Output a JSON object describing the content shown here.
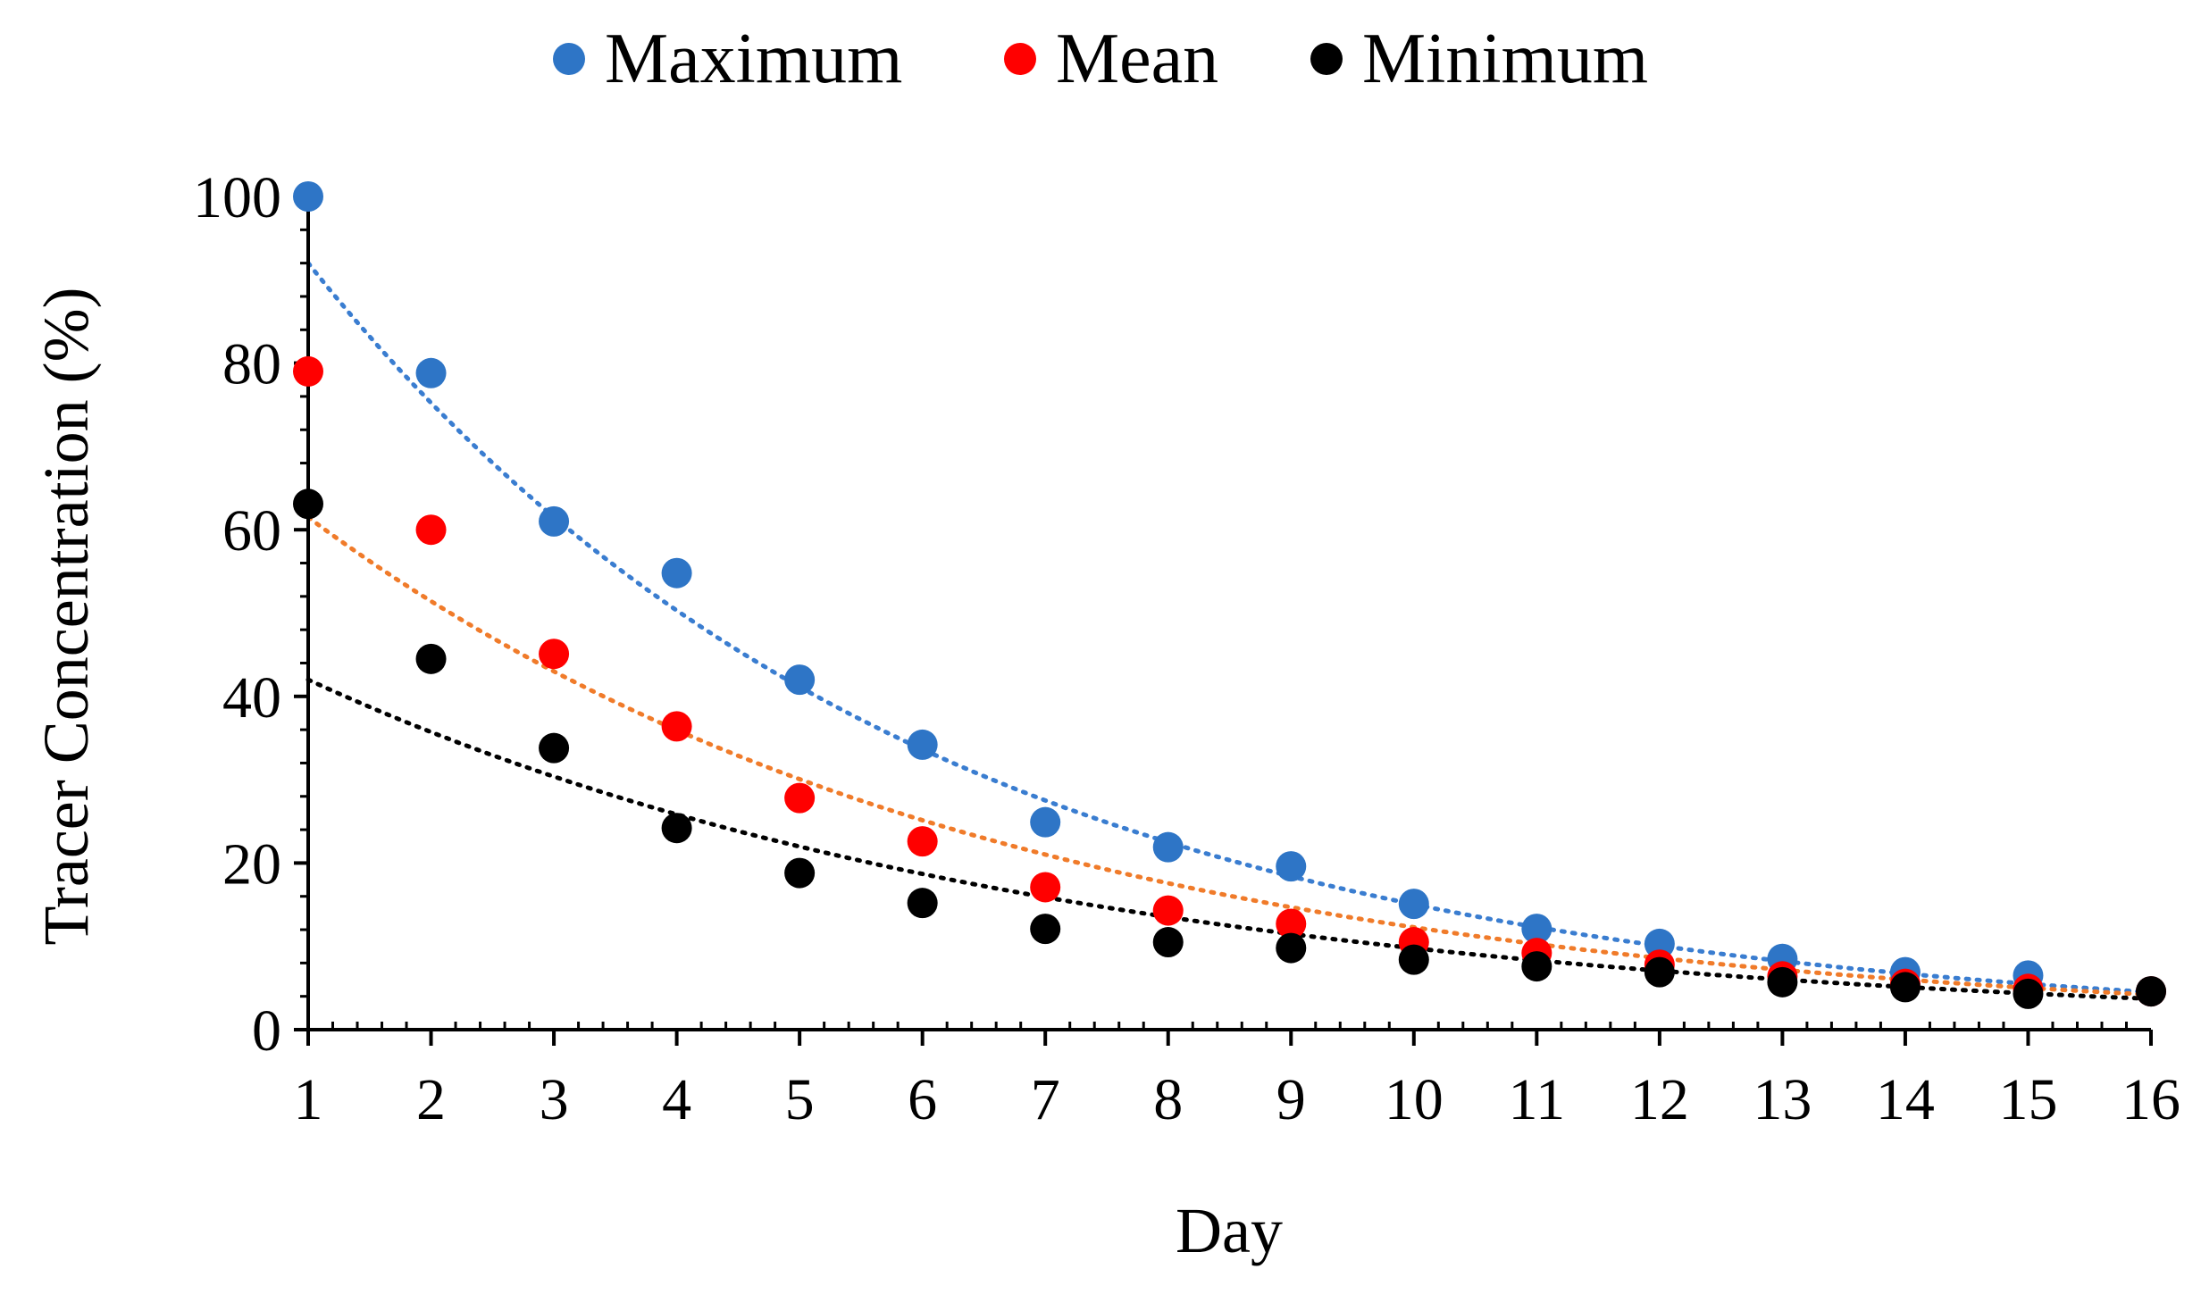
{
  "chart_data": {
    "type": "scatter",
    "title": "",
    "xlabel": "Day",
    "ylabel": "Tracer Concentration (%)",
    "xlim": [
      1,
      16
    ],
    "ylim": [
      0,
      100
    ],
    "x_ticks": [
      1,
      2,
      3,
      4,
      5,
      6,
      7,
      8,
      9,
      10,
      11,
      12,
      13,
      14,
      15,
      16
    ],
    "y_ticks": [
      0,
      20,
      40,
      60,
      80,
      100
    ],
    "legend_position": "top",
    "grid": false,
    "x": [
      1,
      2,
      3,
      4,
      5,
      6,
      7,
      8,
      9,
      10,
      11,
      12,
      13,
      14,
      15,
      16
    ],
    "series": [
      {
        "name": "Maximum",
        "color": "#2e75c6",
        "trend_color": "#3a7dd0",
        "trendline": "exponential",
        "trend_start": 92,
        "trend_end": 4.5,
        "values": [
          100,
          78.8,
          61,
          54.8,
          42,
          34.2,
          24.9,
          21.9,
          19.6,
          15.1,
          12.1,
          10.3,
          8.5,
          6.9,
          6.5,
          4.6
        ]
      },
      {
        "name": "Mean",
        "color": "#ff0000",
        "trend_color": "#f07b2a",
        "trendline": "exponential",
        "trend_start": 61.5,
        "trend_end": 4.2,
        "values": [
          79,
          60,
          45.1,
          36.4,
          27.8,
          22.6,
          17.1,
          14.3,
          12.7,
          10.5,
          9.2,
          7.8,
          6.4,
          5.5,
          4.9,
          4.6
        ]
      },
      {
        "name": "Minimum",
        "color": "#000000",
        "trend_color": "#000000",
        "trendline": "exponential",
        "trend_start": 42,
        "trend_end": 3.7,
        "values": [
          63.1,
          44.5,
          33.8,
          24.2,
          18.8,
          15.2,
          12.1,
          10.5,
          9.8,
          8.4,
          7.6,
          6.9,
          5.7,
          5.1,
          4.3,
          4.6
        ]
      }
    ]
  }
}
